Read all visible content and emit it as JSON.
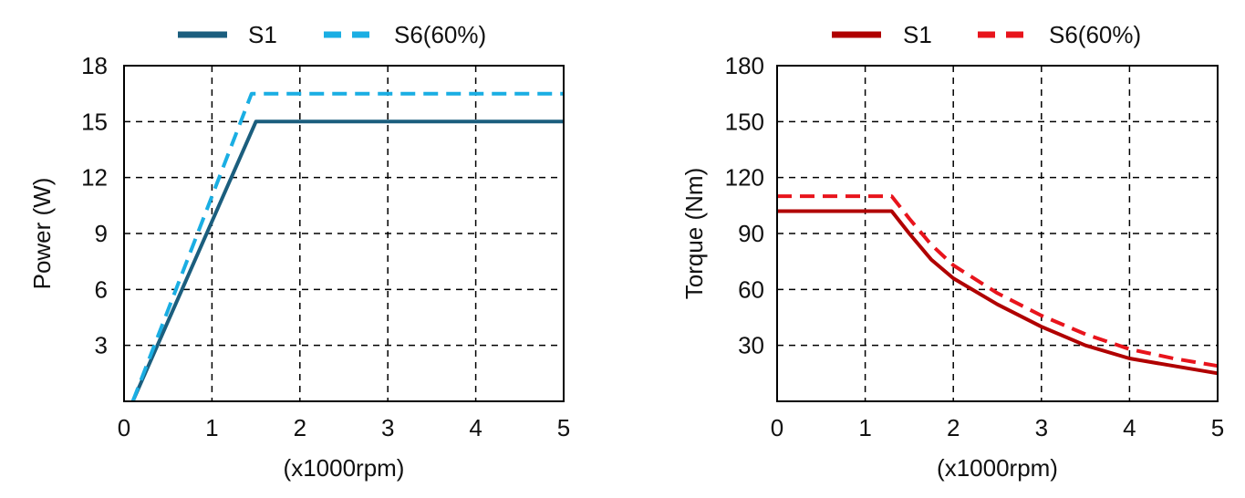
{
  "chart_data": [
    {
      "type": "line",
      "title": "",
      "xlabel": "(x1000rpm)",
      "ylabel": "Power (W)",
      "xlim": [
        0,
        5
      ],
      "ylim": [
        0,
        18
      ],
      "xticks": [
        "0",
        "1",
        "2",
        "3",
        "4",
        "5"
      ],
      "yticks": [
        "3",
        "6",
        "9",
        "12",
        "15",
        "18"
      ],
      "grid": true,
      "legend_position": "top",
      "series": [
        {
          "name": "S1",
          "color": "#1b5e7e",
          "dash": "solid",
          "x": [
            0.1,
            1.5,
            5.0
          ],
          "y": [
            0,
            15,
            15
          ]
        },
        {
          "name": "S6(60%)",
          "color": "#1aaee3",
          "dash": "dashed",
          "x": [
            0.1,
            1.45,
            5.0
          ],
          "y": [
            0,
            16.5,
            16.5
          ]
        }
      ]
    },
    {
      "type": "line",
      "title": "",
      "xlabel": "(x1000rpm)",
      "ylabel": "Torque  (Nm)",
      "xlim": [
        0,
        5
      ],
      "ylim": [
        0,
        180
      ],
      "xticks": [
        "0",
        "1",
        "2",
        "3",
        "4",
        "5"
      ],
      "yticks": [
        "30",
        "60",
        "90",
        "120",
        "150",
        "180"
      ],
      "grid": true,
      "legend_position": "top",
      "series": [
        {
          "name": "S1",
          "color": "#b00000",
          "dash": "solid",
          "x": [
            0,
            1.3,
            1.5,
            1.75,
            2.0,
            2.5,
            3.0,
            3.5,
            4.0,
            4.5,
            5.0
          ],
          "y": [
            102,
            102,
            90,
            76,
            66,
            52,
            40,
            30,
            23,
            19,
            15
          ]
        },
        {
          "name": "S6(60%)",
          "color": "#e8141c",
          "dash": "dashed",
          "x": [
            0,
            1.3,
            1.5,
            1.75,
            2.0,
            2.5,
            3.0,
            3.5,
            4.0,
            4.5,
            5.0
          ],
          "y": [
            110,
            110,
            98,
            84,
            73,
            58,
            46,
            36,
            28,
            23,
            19
          ]
        }
      ]
    }
  ]
}
